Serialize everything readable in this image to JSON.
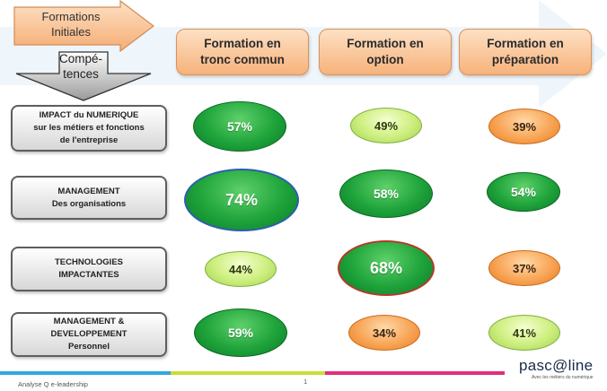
{
  "corner": {
    "formations_label": "Formations\nInitiales",
    "competences_label": "Compé-\ntences"
  },
  "columns": [
    {
      "label": "Formation en\ntronc commun"
    },
    {
      "label": "Formation en\noption"
    },
    {
      "label": "Formation en\npréparation"
    }
  ],
  "rows": [
    {
      "label": "IMPACT  du NUMERIQUE\nsur les métiers et fonctions\nde l'entreprise",
      "values": [
        "57%",
        "49%",
        "39%"
      ]
    },
    {
      "label": "MANAGEMENT\nDes organisations",
      "values": [
        "74%",
        "58%",
        "54%"
      ]
    },
    {
      "label": "TECHNOLOGIES\nIMPACTANTES",
      "values": [
        "44%",
        "68%",
        "37%"
      ]
    },
    {
      "label": "MANAGEMENT   &\nDEVELOPPEMENT\nPersonnel",
      "values": [
        "59%",
        "34%",
        "41%"
      ]
    }
  ],
  "colors": {
    "dark_green": "#1ea33a",
    "light_green": "#cdee7e",
    "orange": "#f7a04f"
  },
  "footer": {
    "left_text": "Analyse Q e-leadership",
    "page_number": "1",
    "logo_text": "pasc@line",
    "logo_tagline": "Avec les métiers du numérique"
  }
}
